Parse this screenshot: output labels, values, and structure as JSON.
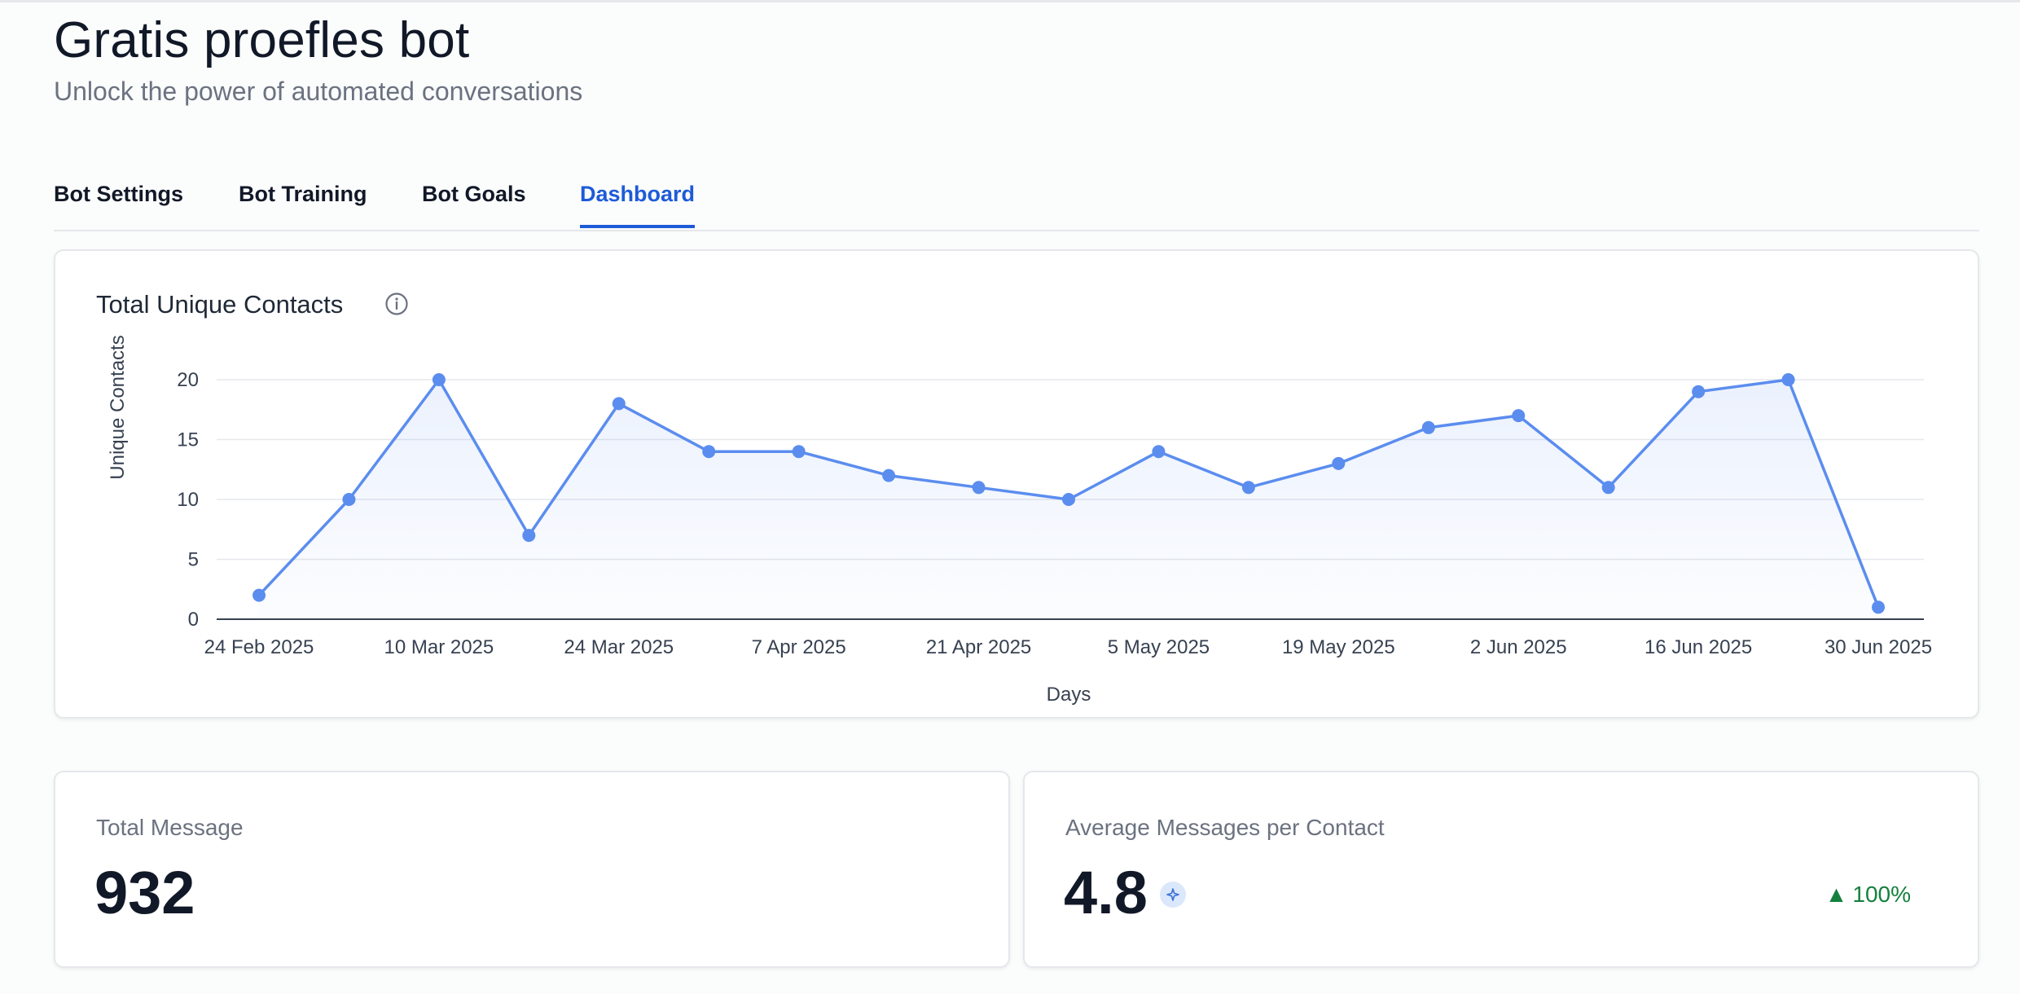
{
  "header": {
    "title": "Gratis proefles bot",
    "subtitle": "Unlock the power of automated conversations"
  },
  "tabs": [
    {
      "label": "Bot Settings",
      "active": false
    },
    {
      "label": "Bot Training",
      "active": false
    },
    {
      "label": "Bot Goals",
      "active": false
    },
    {
      "label": "Dashboard",
      "active": true
    }
  ],
  "chart_card": {
    "title": "Total Unique Contacts",
    "info_icon": "info-icon"
  },
  "chart_data": {
    "type": "line",
    "xlabel": "Days",
    "ylabel": "Unique Contacts",
    "ylim": [
      0,
      20
    ],
    "yticks": [
      0,
      5,
      10,
      15,
      20
    ],
    "x_tick_labels": [
      "24 Feb 2025",
      "10 Mar 2025",
      "24 Mar 2025",
      "7 Apr 2025",
      "21 Apr 2025",
      "5 May 2025",
      "19 May 2025",
      "2 Jun 2025",
      "16 Jun 2025",
      "30 Jun 2025"
    ],
    "x": [
      "24 Feb 2025",
      "3 Mar 2025",
      "10 Mar 2025",
      "17 Mar 2025",
      "24 Mar 2025",
      "31 Mar 2025",
      "7 Apr 2025",
      "14 Apr 2025",
      "21 Apr 2025",
      "28 Apr 2025",
      "5 May 2025",
      "12 May 2025",
      "19 May 2025",
      "26 May 2025",
      "2 Jun 2025",
      "9 Jun 2025",
      "16 Jun 2025",
      "23 Jun 2025",
      "30 Jun 2025"
    ],
    "series": [
      {
        "values": [
          2,
          10,
          20,
          7,
          18,
          14,
          14,
          12,
          11,
          10,
          14,
          11,
          13,
          16,
          17,
          11,
          19,
          20,
          1
        ]
      }
    ],
    "grid": true,
    "area_fill": true,
    "color": "#5b8def"
  },
  "stats": {
    "total_message": {
      "label": "Total Message",
      "value": "932"
    },
    "avg_messages": {
      "label": "Average Messages per Contact",
      "value": "4.8",
      "change": "100%",
      "change_icon": "triangle-up-icon",
      "change_color": "#15803d",
      "badge_icon": "sparkle-icon"
    }
  }
}
